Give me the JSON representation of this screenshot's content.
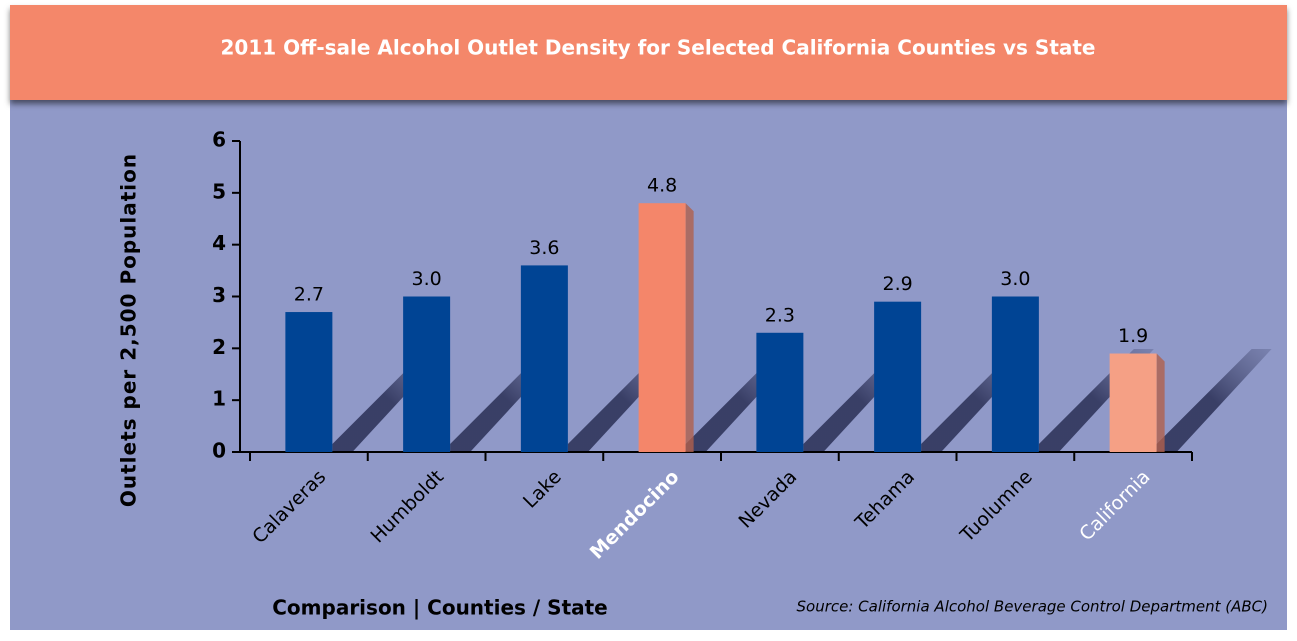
{
  "chart_data": {
    "type": "bar",
    "title": "2011 Off-sale Alcohol Outlet Density for Selected California Counties vs State",
    "y_label": "Outlets per 2,500 Population",
    "x_label": "Comparison  | Counties / State",
    "source": "Source: California Alcohol Beverage Control Department (ABC)",
    "categories": [
      "Calaveras",
      "Humboldt",
      "Lake",
      "Mendocino",
      "Nevada",
      "Tehama",
      "Tuolumne",
      "California"
    ],
    "values": [
      2.7,
      3.0,
      3.6,
      4.8,
      2.3,
      2.9,
      3.0,
      1.9
    ],
    "value_labels": [
      "2.7",
      "3.0",
      "3.6",
      "4.8",
      "2.3",
      "2.9",
      "3.0",
      "1.9"
    ],
    "colors": [
      "#004494",
      "#004494",
      "#004494",
      "#f4866a",
      "#004494",
      "#004494",
      "#004494",
      "#f5a085"
    ],
    "label_colors": [
      "#000000",
      "#000000",
      "#000000",
      "#ffffff",
      "#000000",
      "#000000",
      "#000000",
      "#ffffff"
    ],
    "label_weights": [
      "normal",
      "normal",
      "normal",
      "bold",
      "normal",
      "normal",
      "normal",
      "normal"
    ],
    "ylim": [
      0,
      6
    ],
    "yticks": [
      0,
      1,
      2,
      3,
      4,
      5,
      6
    ],
    "grid": false
  }
}
